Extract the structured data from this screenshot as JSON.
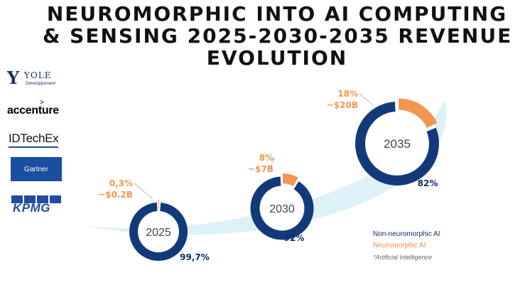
{
  "title_lines": [
    "NEUROMORPHIC INTO AI COMPUTING",
    "& SENSING 2025-2030-2035 REVENUE",
    "EVOLUTION"
  ],
  "logos": {
    "yole": {
      "name": "YOLE",
      "sub": "Développement"
    },
    "accenture": "accenture",
    "idtechex": "IDTechEx",
    "gartner": "Gartner",
    "kpmg": "KPMG"
  },
  "colors": {
    "non_neuromorphic": "#123a7a",
    "neuromorphic": "#f29650",
    "ring_track": "#ffffff",
    "swoosh": "#dcf1f8"
  },
  "chart_data": {
    "type": "pie",
    "charts": [
      {
        "year": "2025",
        "non_neuromorphic_pct": 99.7,
        "neuromorphic_pct": 0.3,
        "non_label": "99,7%",
        "neuro_pct_label": "0,3%",
        "neuro_value_label": "~$0.2B"
      },
      {
        "year": "2030",
        "non_neuromorphic_pct": 92,
        "neuromorphic_pct": 8,
        "non_label": "92%",
        "neuro_pct_label": "8%",
        "neuro_value_label": "~$7B"
      },
      {
        "year": "2035",
        "non_neuromorphic_pct": 82,
        "neuromorphic_pct": 18,
        "non_label": "82%",
        "neuro_pct_label": "18%",
        "neuro_value_label": "~$20B"
      }
    ],
    "legend": {
      "non_neuromorphic": "Non-neuromorphic AI",
      "neuromorphic": "Neuromorphic AI",
      "footnote": "*Artificial Intelligence"
    }
  }
}
